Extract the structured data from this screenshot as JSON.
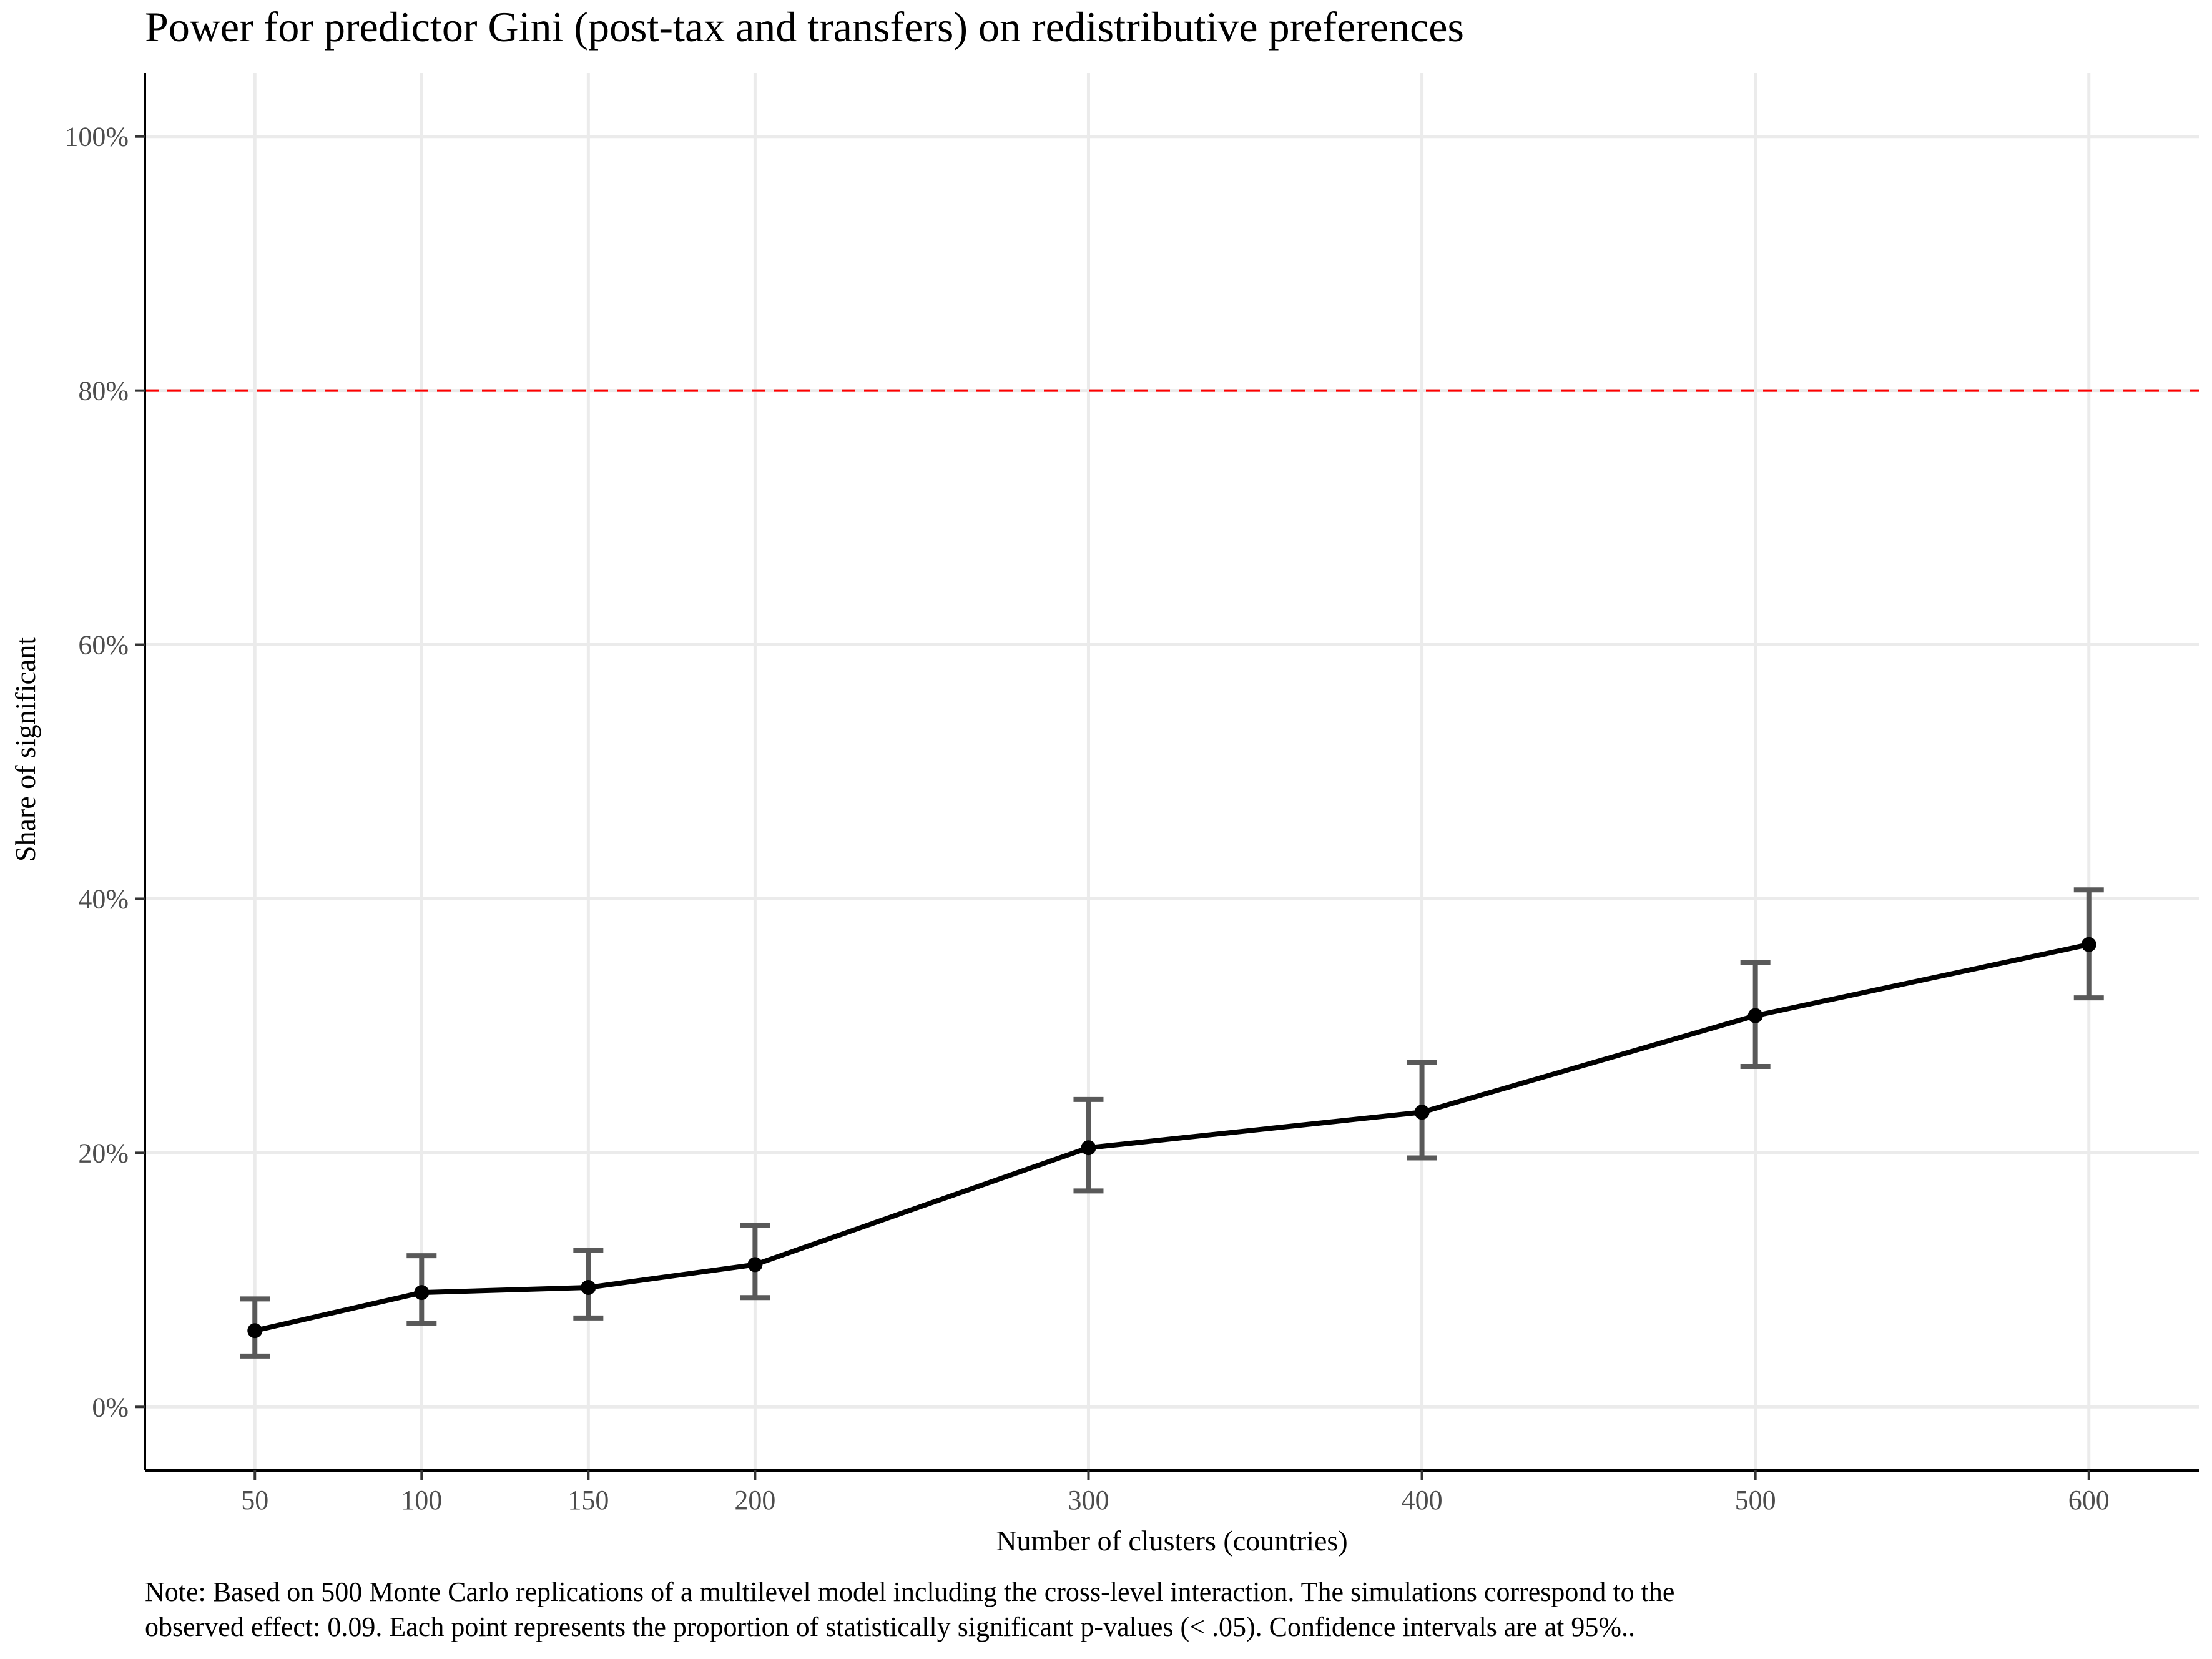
{
  "chart_data": {
    "type": "line",
    "title": "Power for predictor Gini (post-tax and transfers) on redistributive preferences",
    "xlabel": "Number of clusters (countries)",
    "ylabel": "Share of significant",
    "x": [
      50,
      100,
      150,
      200,
      300,
      400,
      500,
      600
    ],
    "series": [
      {
        "values": [
          0.06,
          0.09,
          0.094,
          0.112,
          0.204,
          0.232,
          0.308,
          0.364
        ],
        "ci_low": [
          0.04,
          0.066,
          0.07,
          0.086,
          0.17,
          0.196,
          0.268,
          0.322
        ],
        "ci_high": [
          0.085,
          0.119,
          0.123,
          0.143,
          0.242,
          0.271,
          0.35,
          0.407
        ],
        "color": "#000000"
      }
    ],
    "reference_line": {
      "y": 0.8,
      "color": "#ff0000",
      "style": "dashed"
    },
    "xlim": [
      17,
      633
    ],
    "ylim": [
      -0.05,
      1.05
    ],
    "x_ticks": [
      50,
      100,
      150,
      200,
      300,
      400,
      500,
      600
    ],
    "x_tick_labels": [
      "50",
      "100",
      "150",
      "200",
      "300",
      "400",
      "500",
      "600"
    ],
    "y_ticks": [
      0,
      0.2,
      0.4,
      0.6,
      0.8,
      1.0
    ],
    "y_tick_labels": [
      "0%",
      "20%",
      "40%",
      "60%",
      "80%",
      "100%"
    ],
    "errorbar_color": "#595959",
    "grid": true
  },
  "note": {
    "line1": "Note: Based on 500 Monte Carlo replications of a multilevel model including the cross-level interaction. The simulations correspond to the",
    "line2": "observed effect: 0.09. Each point represents the proportion of statistically significant p-values (< .05). Confidence intervals are at 95%.."
  }
}
